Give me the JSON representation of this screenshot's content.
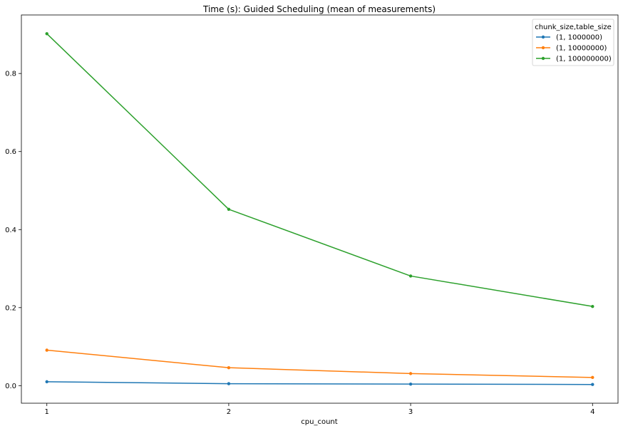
{
  "chart_data": {
    "type": "line",
    "title": "Time (s): Guided Scheduling (mean of measurements)",
    "xlabel": "cpu_count",
    "ylabel": "",
    "x": [
      1,
      2,
      3,
      4
    ],
    "x_tick_labels": [
      "1",
      "2",
      "3",
      "4"
    ],
    "xlim": [
      0.86,
      4.14
    ],
    "ylim": [
      -0.045,
      0.95
    ],
    "y_ticks": [
      0.0,
      0.2,
      0.4,
      0.6,
      0.8
    ],
    "y_tick_labels": [
      "0.0",
      "0.2",
      "0.4",
      "0.6",
      "0.8"
    ],
    "grid": false,
    "legend": {
      "title": "chunk_size,table_size",
      "placement": "top-right"
    },
    "series": [
      {
        "name": "(1, 1000000)",
        "color": "#1f77b4",
        "values": [
          0.01,
          0.005,
          0.004,
          0.003
        ]
      },
      {
        "name": "(1, 10000000)",
        "color": "#ff7f0e",
        "values": [
          0.091,
          0.046,
          0.031,
          0.021
        ]
      },
      {
        "name": "(1, 100000000)",
        "color": "#2ca02c",
        "values": [
          0.902,
          0.452,
          0.281,
          0.203
        ]
      }
    ]
  }
}
